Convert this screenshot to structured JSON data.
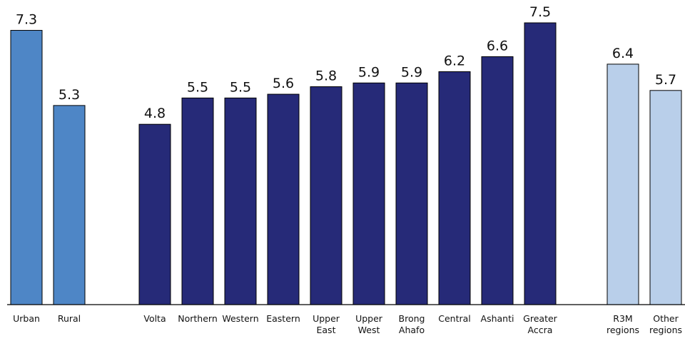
{
  "chart_data": {
    "type": "bar",
    "grid": false,
    "legend": "none",
    "ylim": [
      0,
      7.5
    ],
    "groups": [
      {
        "color": "#4E86C6",
        "categories": [
          [
            "Urban"
          ],
          [
            "Rural"
          ]
        ],
        "values": [
          7.3,
          5.3
        ]
      },
      {
        "color": "#262A78",
        "categories": [
          [
            "Volta"
          ],
          [
            "Northern"
          ],
          [
            "Western"
          ],
          [
            "Eastern"
          ],
          [
            "Upper",
            "East"
          ],
          [
            "Upper",
            "West"
          ],
          [
            "Brong",
            "Ahafo"
          ],
          [
            "Central"
          ],
          [
            "Ashanti"
          ],
          [
            "Greater",
            "Accra"
          ]
        ],
        "values": [
          4.8,
          5.5,
          5.5,
          5.6,
          5.8,
          5.9,
          5.9,
          6.2,
          6.6,
          7.5
        ]
      },
      {
        "color": "#B9CFEA",
        "categories": [
          [
            "R3M",
            "regions"
          ],
          [
            "Other",
            "regions"
          ]
        ],
        "values": [
          6.4,
          5.7
        ]
      }
    ]
  }
}
